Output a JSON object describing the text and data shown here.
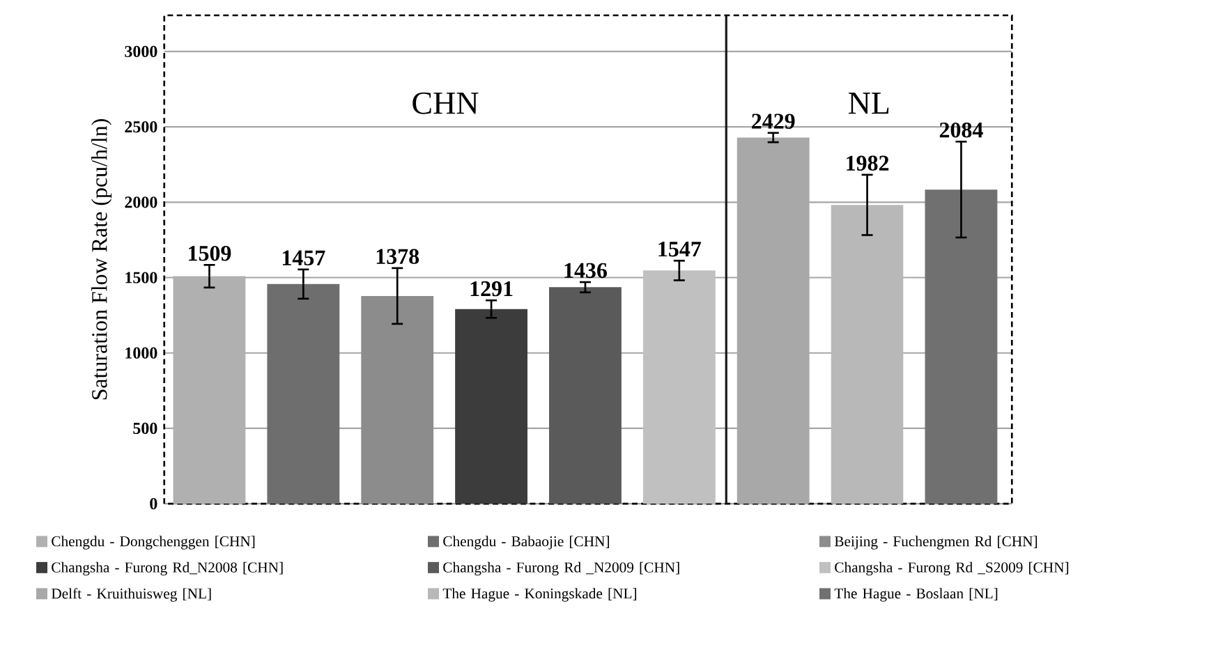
{
  "chart_data": {
    "type": "bar",
    "ylabel": "Saturation Flow Rate (pcu/h/ln)",
    "categories": [
      null,
      null,
      null,
      null,
      null,
      null,
      null,
      null,
      null
    ],
    "ylim": [
      0,
      3240
    ],
    "yticks": [
      0,
      500,
      1000,
      1500,
      2000,
      2500,
      3000
    ],
    "grid": "y",
    "legend": "bottom",
    "data_labels": true,
    "tick_labels": "y",
    "annotations": [
      "CHN",
      "NL"
    ],
    "series": [
      {
        "name": "Chengdu - Dongchenggen [CHN]",
        "color": "#b0b0b0",
        "values": [
          1509,
          null,
          null,
          null,
          null,
          null,
          null,
          null,
          null
        ],
        "errors": [
          75,
          null,
          null,
          null,
          null,
          null,
          null,
          null,
          null
        ]
      },
      {
        "name": "Chengdu - Babaojie [CHN]",
        "color": "#6e6e6e",
        "values": [
          null,
          1457,
          null,
          null,
          null,
          null,
          null,
          null,
          null
        ],
        "errors": [
          null,
          97,
          null,
          null,
          null,
          null,
          null,
          null,
          null
        ]
      },
      {
        "name": "Beijing - Fuchengmen Rd [CHN]",
        "color": "#8c8c8c",
        "values": [
          null,
          null,
          1378,
          null,
          null,
          null,
          null,
          null,
          null
        ],
        "errors": [
          null,
          null,
          185,
          null,
          null,
          null,
          null,
          null,
          null
        ]
      },
      {
        "name": "Changsha - Furong Rd_N2008 [CHN]",
        "color": "#3c3c3c",
        "values": [
          null,
          null,
          null,
          1291,
          null,
          null,
          null,
          null,
          null
        ],
        "errors": [
          null,
          null,
          null,
          58,
          null,
          null,
          null,
          null,
          null
        ]
      },
      {
        "name": "Changsha - Furong Rd _N2009 [CHN]",
        "color": "#5a5a5a",
        "values": [
          null,
          null,
          null,
          null,
          1436,
          null,
          null,
          null,
          null
        ],
        "errors": [
          null,
          null,
          null,
          null,
          34,
          null,
          null,
          null,
          null
        ]
      },
      {
        "name": "Changsha - Furong Rd _S2009 [CHN]",
        "color": "#c0c0c0",
        "values": [
          null,
          null,
          null,
          null,
          null,
          1547,
          null,
          null,
          null
        ],
        "errors": [
          null,
          null,
          null,
          null,
          null,
          65,
          null,
          null,
          null
        ]
      },
      {
        "name": "Delft - Kruithuisweg [NL]",
        "color": "#a8a8a8",
        "values": [
          null,
          null,
          null,
          null,
          null,
          null,
          2429,
          null,
          null
        ],
        "errors": [
          null,
          null,
          null,
          null,
          null,
          null,
          31,
          null,
          null
        ]
      },
      {
        "name": "The Hague - Koningskade [NL]",
        "color": "#b8b8b8",
        "values": [
          null,
          null,
          null,
          null,
          null,
          null,
          null,
          1982,
          null
        ],
        "errors": [
          null,
          null,
          null,
          null,
          null,
          null,
          null,
          200,
          null
        ]
      },
      {
        "name": "The Hague - Boslaan [NL]",
        "color": "#707070",
        "values": [
          null,
          null,
          null,
          null,
          null,
          null,
          null,
          null,
          2084
        ],
        "errors": [
          null,
          null,
          null,
          null,
          null,
          null,
          null,
          null,
          318
        ]
      }
    ]
  }
}
